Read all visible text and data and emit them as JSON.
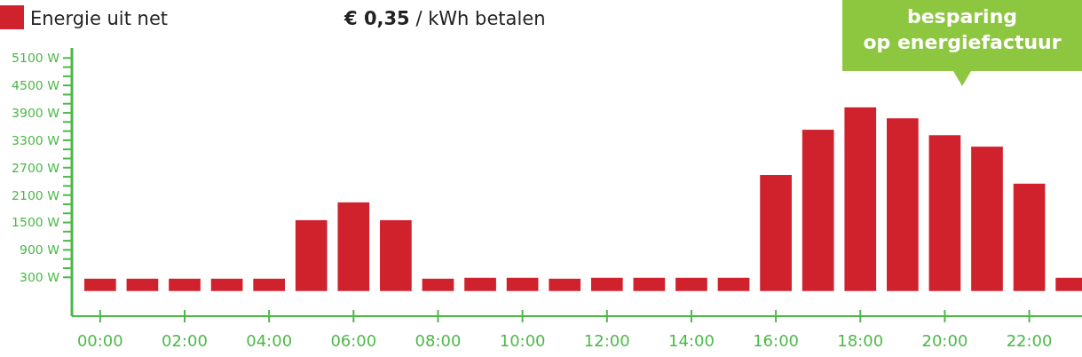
{
  "chart_data": {
    "type": "bar",
    "categories": [
      "00:00",
      null,
      "02:00",
      null,
      "04:00",
      null,
      "06:00",
      null,
      "08:00",
      null,
      "10:00",
      null,
      "12:00",
      null,
      "14:00",
      null,
      "16:00",
      null,
      "18:00",
      null,
      "20:00",
      null,
      "22:00",
      null
    ],
    "series": [
      {
        "name": "Energie uit net",
        "color": "#d0222d",
        "values": [
          270,
          270,
          270,
          270,
          270,
          1550,
          1940,
          1550,
          270,
          290,
          290,
          270,
          290,
          290,
          290,
          290,
          2540,
          3530,
          4020,
          3780,
          3410,
          3160,
          2350,
          290
        ]
      }
    ],
    "ylim": [
      -550,
      5320
    ],
    "yticks": [
      {
        "value": 300,
        "label": "300 W"
      },
      {
        "value": 500,
        "label": null
      },
      {
        "value": 700,
        "label": null
      },
      {
        "value": 900,
        "label": "900 W"
      },
      {
        "value": 1100,
        "label": null
      },
      {
        "value": 1300,
        "label": null
      },
      {
        "value": 1500,
        "label": "1500 W"
      },
      {
        "value": 1700,
        "label": null
      },
      {
        "value": 1900,
        "label": null
      },
      {
        "value": 2100,
        "label": "2100 W"
      },
      {
        "value": 2300,
        "label": null
      },
      {
        "value": 2500,
        "label": null
      },
      {
        "value": 2700,
        "label": "2700 W"
      },
      {
        "value": 2900,
        "label": null
      },
      {
        "value": 3100,
        "label": null
      },
      {
        "value": 3300,
        "label": "3300 W"
      },
      {
        "value": 3500,
        "label": null
      },
      {
        "value": 3700,
        "label": null
      },
      {
        "value": 3900,
        "label": "3900 W"
      },
      {
        "value": 4100,
        "label": null
      },
      {
        "value": 4300,
        "label": null
      },
      {
        "value": 4500,
        "label": "4500 W"
      },
      {
        "value": 4700,
        "label": null
      },
      {
        "value": 4900,
        "label": null
      },
      {
        "value": 5100,
        "label": "5100 W"
      }
    ],
    "legend": "top left",
    "grid": false,
    "annotations": [
      "€ 0,35 / kWh betalen",
      "besparing\nop energiefactuur"
    ]
  }
}
